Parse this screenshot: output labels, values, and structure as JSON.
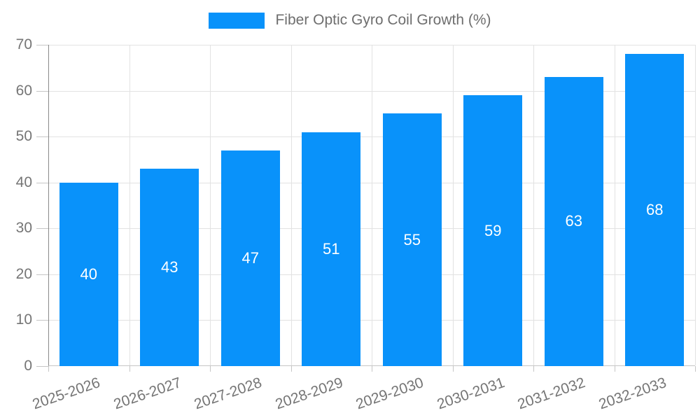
{
  "legend": {
    "label": "Fiber Optic Gyro Coil Growth (%)",
    "swatch_color": "#0992fa"
  },
  "chart_data": {
    "type": "bar",
    "title": "Fiber Optic Gyro Coil Growth (%)",
    "categories": [
      "2025-2026",
      "2026-2027",
      "2027-2028",
      "2028-2029",
      "2029-2030",
      "2030-2031",
      "2031-2032",
      "2032-2033"
    ],
    "values": [
      40,
      43,
      47,
      51,
      55,
      59,
      63,
      68
    ],
    "xlabel": "",
    "ylabel": "",
    "ylim": [
      0,
      70
    ],
    "yticks": [
      0,
      10,
      20,
      30,
      40,
      50,
      60,
      70
    ],
    "grid": true,
    "legend_position": "top",
    "bar_color": "#0992fa",
    "value_label_color": "#ffffff",
    "grid_color": "#e2e2e2",
    "axis_text_color": "#757575",
    "x_label_rotation_deg": -19
  }
}
